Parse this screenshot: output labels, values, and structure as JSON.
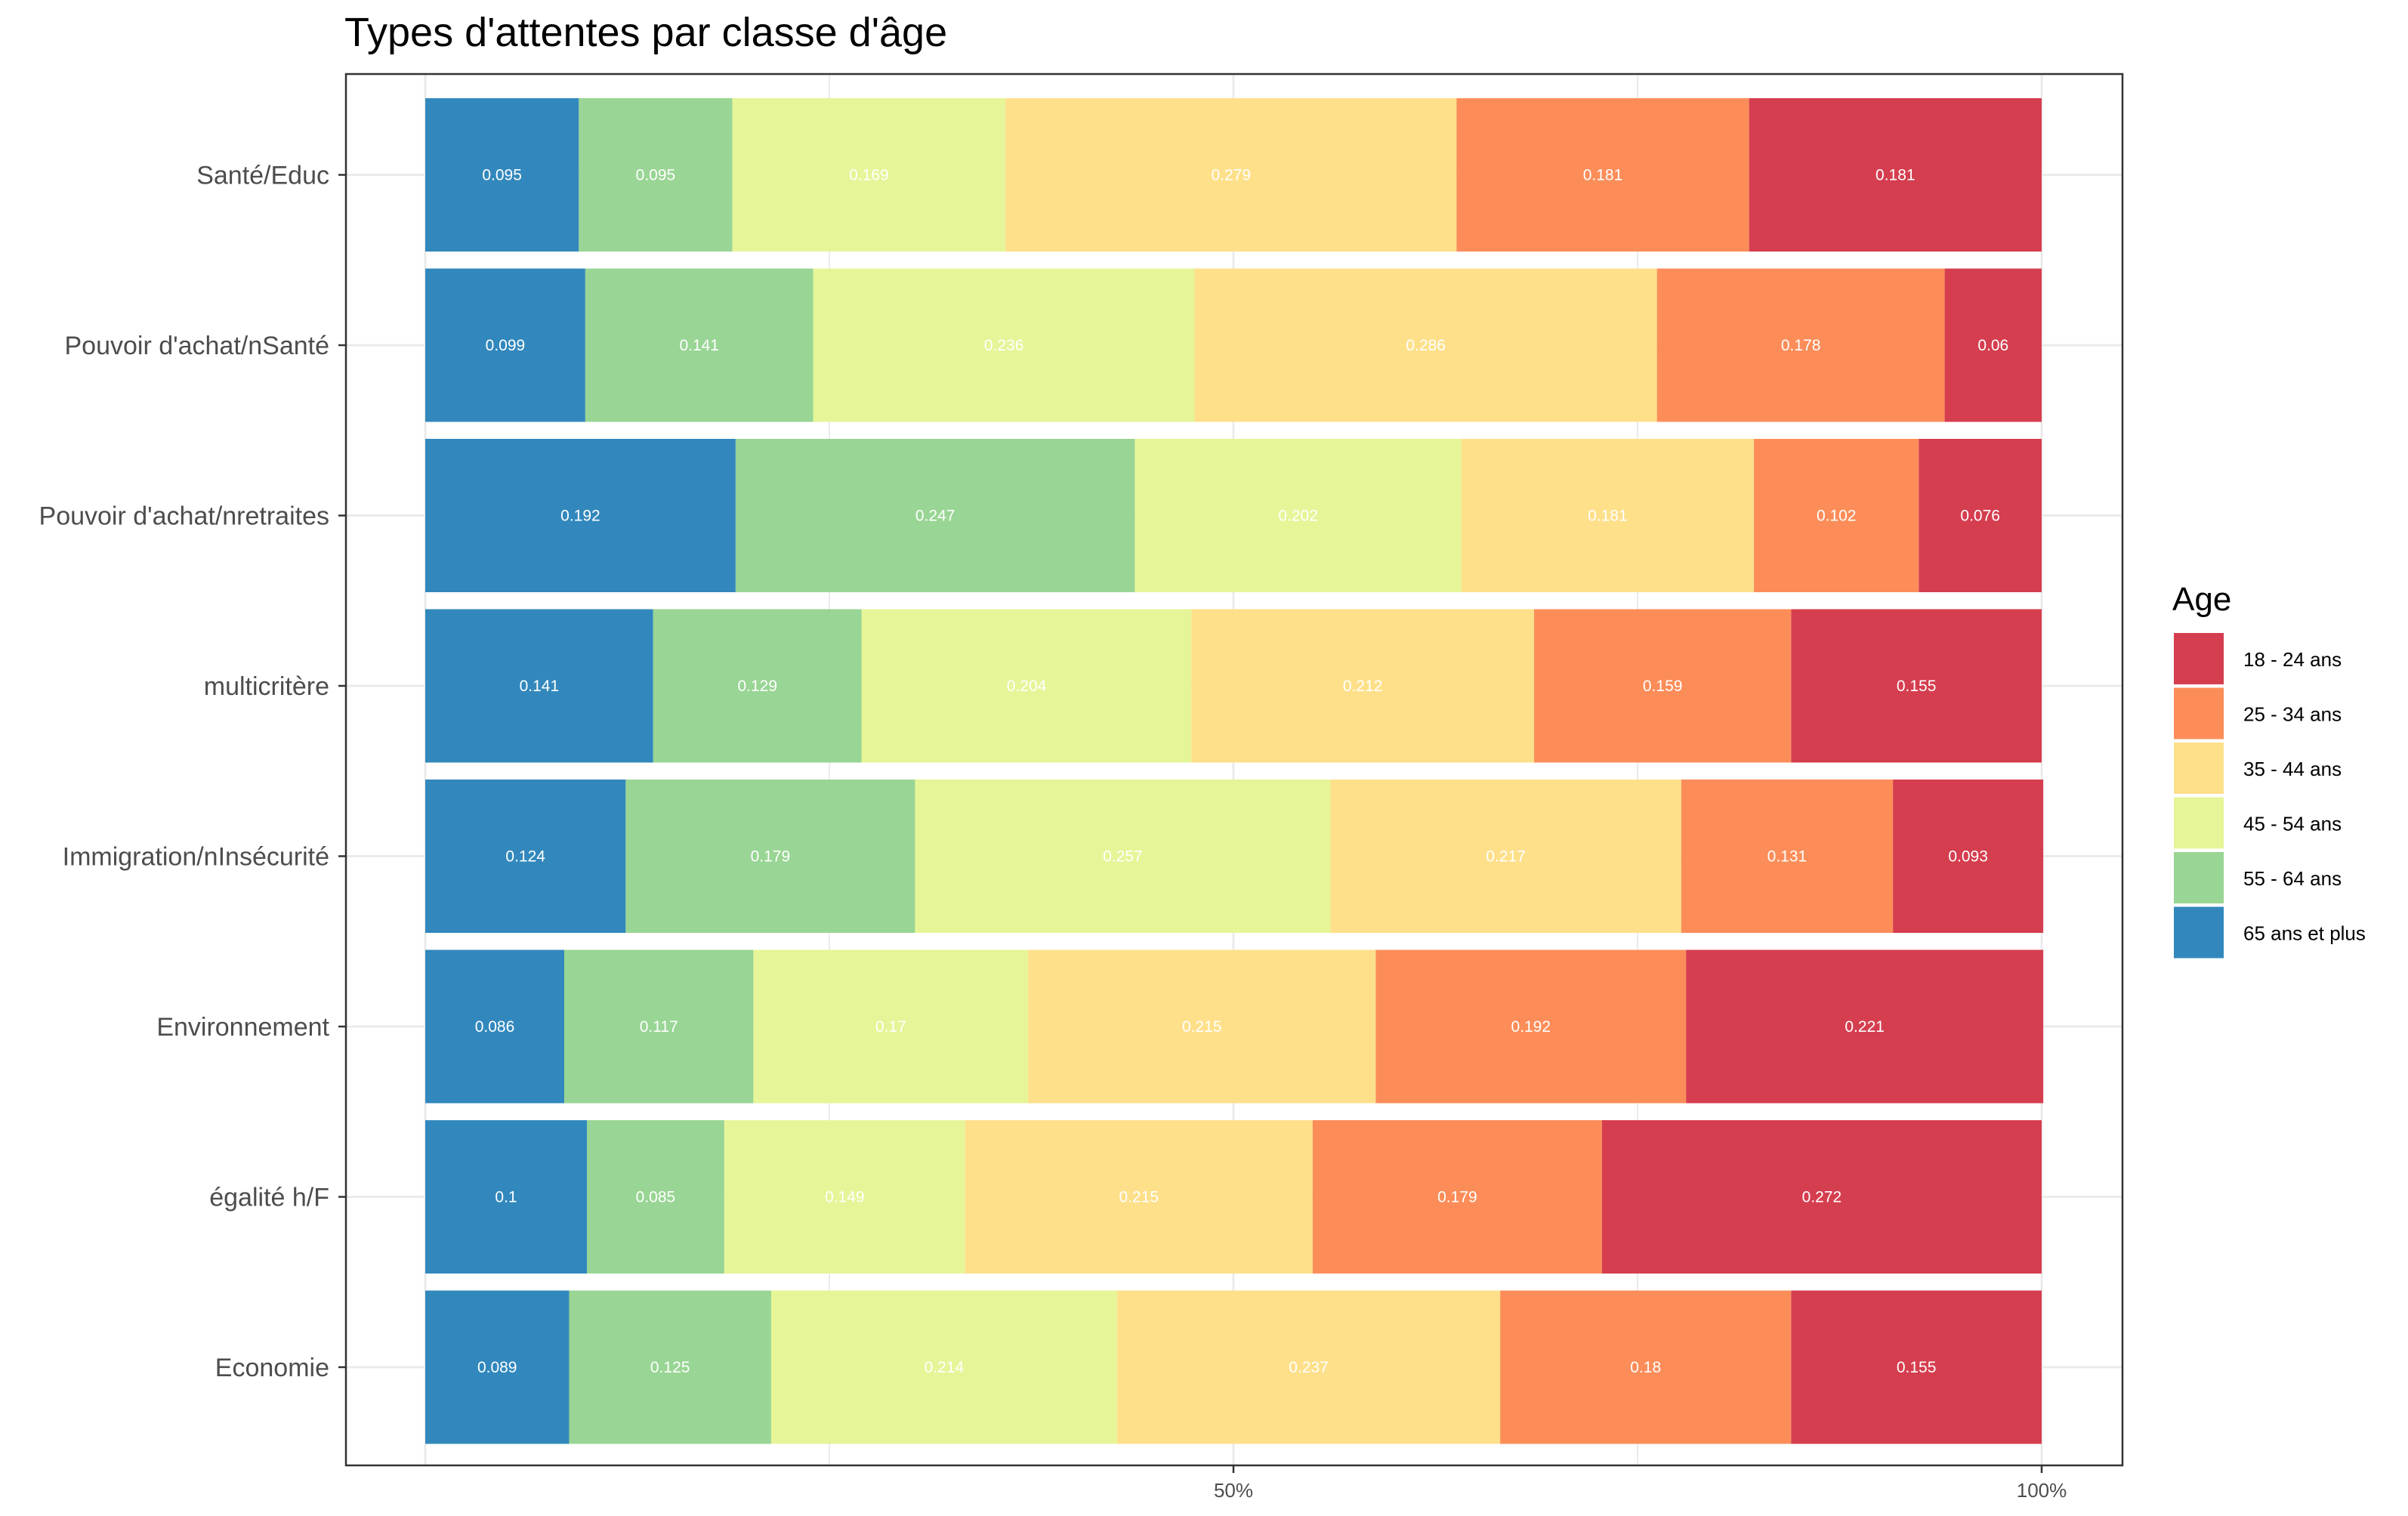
{
  "chart_data": {
    "type": "bar",
    "orientation": "horizontal",
    "stacked": true,
    "normalized": true,
    "title": "Types d'attentes par classe d'âge",
    "xlabel": "",
    "ylabel": "",
    "xlim": [
      0,
      1
    ],
    "x_ticks": [
      {
        "value": 0.5,
        "label": "50%"
      },
      {
        "value": 1.0,
        "label": "100%"
      }
    ],
    "grid": true,
    "legend_title": "Age",
    "legend_position": "right",
    "categories": [
      "Santé/Educ",
      "Pouvoir d'achat/nSanté",
      "Pouvoir d'achat/nretraites",
      "multicritère",
      "Immigration/nInsécurité ",
      "Environnement",
      "égalité h/F",
      "Economie"
    ],
    "stack_order_left_to_right": [
      "65 ans et plus",
      "55 - 64 ans",
      "45 - 54 ans",
      "35 - 44 ans",
      "25 - 34 ans",
      "18 - 24 ans"
    ],
    "series": [
      {
        "name": "18 - 24 ans",
        "color": "#d53e4f",
        "values": [
          0.181,
          0.06,
          0.076,
          0.155,
          0.093,
          0.221,
          0.272,
          0.155
        ],
        "labels": [
          "0.181",
          "0.06",
          "0.076",
          "0.155",
          "0.093",
          "0.221",
          "0.272",
          "0.155"
        ]
      },
      {
        "name": "25 - 34 ans",
        "color": "#fc8d59",
        "values": [
          0.181,
          0.178,
          0.102,
          0.159,
          0.131,
          0.192,
          0.179,
          0.18
        ],
        "labels": [
          "0.181",
          "0.178",
          "0.102",
          "0.159",
          "0.131",
          "0.192",
          "0.179",
          "0.18"
        ]
      },
      {
        "name": "35 - 44 ans",
        "color": "#fee08b",
        "values": [
          0.279,
          0.286,
          0.181,
          0.212,
          0.217,
          0.215,
          0.215,
          0.237
        ],
        "labels": [
          "0.279",
          "0.286",
          "0.181",
          "0.212",
          "0.217",
          "0.215",
          "0.215",
          "0.237"
        ]
      },
      {
        "name": "45 - 54 ans",
        "color": "#e6f598",
        "values": [
          0.169,
          0.236,
          0.202,
          0.204,
          0.257,
          0.17,
          0.149,
          0.214
        ],
        "labels": [
          "0.169",
          "0.236",
          "0.202",
          "0.204",
          "0.257",
          "0.17",
          "0.149",
          "0.214"
        ]
      },
      {
        "name": "55 - 64 ans",
        "color": "#99d594",
        "values": [
          0.095,
          0.141,
          0.247,
          0.129,
          0.179,
          0.117,
          0.085,
          0.125
        ],
        "labels": [
          "0.095",
          "0.141",
          "0.247",
          "0.129",
          "0.179",
          "0.117",
          "0.085",
          "0.125"
        ]
      },
      {
        "name": "65 ans et plus",
        "color": "#3288bd",
        "values": [
          0.095,
          0.099,
          0.192,
          0.141,
          0.124,
          0.086,
          0.1,
          0.089
        ],
        "labels": [
          "0.095",
          "0.099",
          "0.192",
          "0.141",
          "0.124",
          "0.086",
          "0.1",
          "0.089"
        ]
      }
    ],
    "legend_order": [
      "18 - 24 ans",
      "25 - 34 ans",
      "35 - 44 ans",
      "45 - 54 ans",
      "55 - 64 ans",
      "65 ans et plus"
    ]
  }
}
